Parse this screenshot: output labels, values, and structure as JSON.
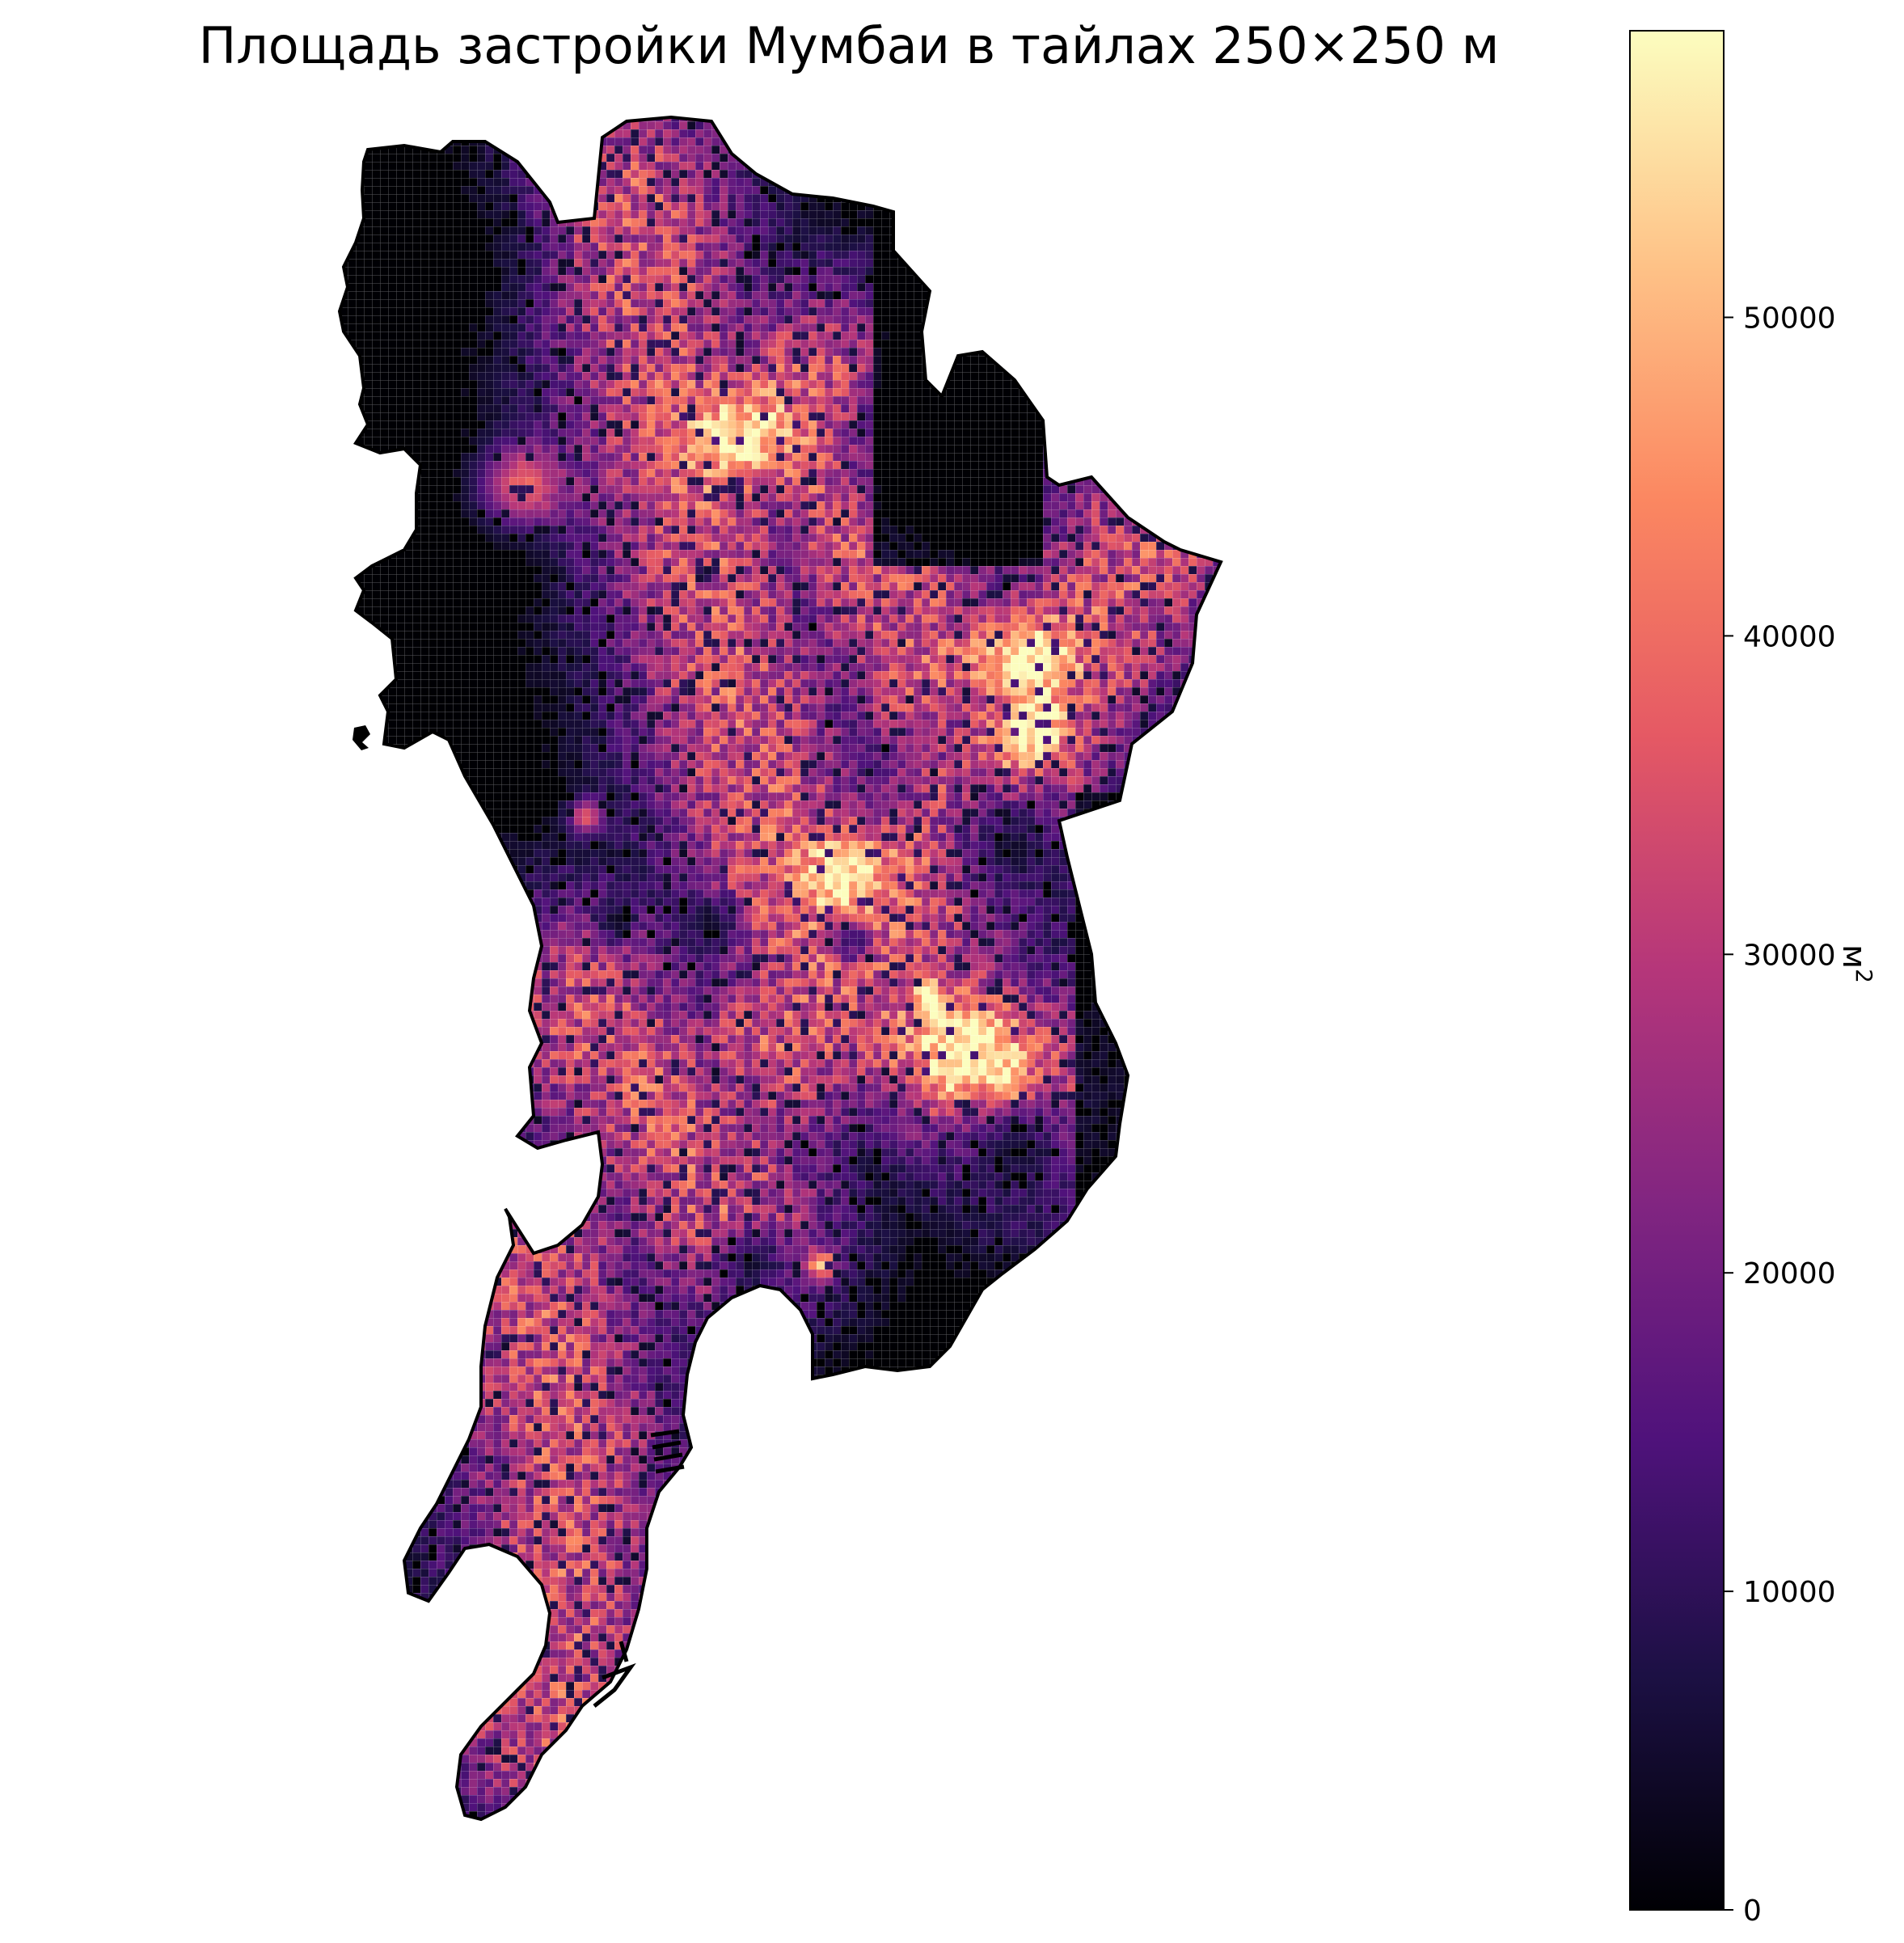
{
  "title": "Площадь застройки Мумбаи в тайлах 250×250 м",
  "chart_data": {
    "type": "heatmap",
    "title": "Площадь застройки Мумбаи в тайлах 250×250 м",
    "tile_size": "250×250 м",
    "colormap": "magma",
    "colorbar": {
      "label": "м²",
      "label_base": "м",
      "label_exponent": "2",
      "range": [
        0,
        59000
      ],
      "ticks": [
        0,
        10000,
        20000,
        30000,
        40000,
        50000
      ],
      "tick_labels": [
        "0",
        "10000",
        "20000",
        "30000",
        "40000",
        "50000"
      ]
    },
    "grid": true,
    "legend": "right"
  },
  "colors": {
    "cmap_stops": [
      "#000004",
      "#1c1044",
      "#4f127b",
      "#812581",
      "#b5367a",
      "#e55964",
      "#fb8761",
      "#fec287",
      "#fcfdbf"
    ],
    "boundary": "#000000",
    "grid_line": "#ffffff"
  }
}
